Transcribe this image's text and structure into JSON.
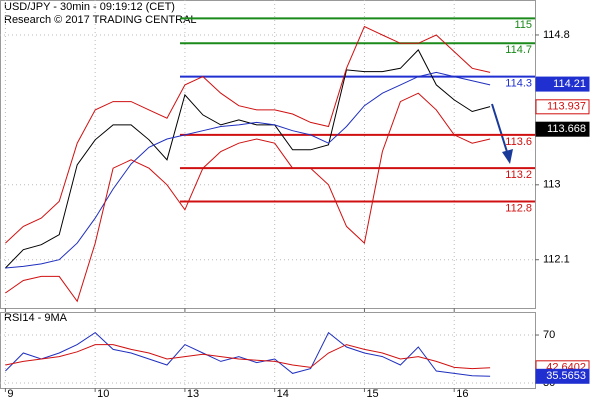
{
  "chart_data": [
    {
      "type": "line",
      "title": "USD/JPY - 30min - 09:19:12 (CET)",
      "subtitle": "Research © 2017 TRADING CENTRAL",
      "x": [
        0,
        0.2,
        0.4,
        0.6,
        0.8,
        1.0,
        1.2,
        1.4,
        1.6,
        1.8,
        2.0,
        2.2,
        2.4,
        2.6,
        2.8,
        3.0,
        3.2,
        3.4,
        3.6,
        3.8,
        4.0,
        4.2,
        4.4,
        4.6,
        4.8,
        5.0,
        5.2,
        5.4
      ],
      "xlim": [
        -0.06,
        5.9
      ],
      "xticks": [
        0,
        1,
        2,
        3,
        4,
        5
      ],
      "ylim": [
        111.52,
        115.22
      ],
      "yticks": [
        114.8,
        113.0,
        112.1
      ],
      "grid": true,
      "series": [
        {
          "color": "#000000",
          "values": [
            112.0,
            112.22,
            112.28,
            112.4,
            113.24,
            113.54,
            113.72,
            113.72,
            113.54,
            113.3,
            114.08,
            113.84,
            113.72,
            113.78,
            113.72,
            113.72,
            113.42,
            113.42,
            113.48,
            114.38,
            114.36,
            114.36,
            114.4,
            114.62,
            114.2,
            114.02,
            113.88,
            113.94
          ]
        },
        {
          "color": "#1f2fbf",
          "values": [
            112.0,
            112.02,
            112.05,
            112.1,
            112.3,
            112.6,
            112.95,
            113.25,
            113.45,
            113.55,
            113.6,
            113.65,
            113.7,
            113.72,
            113.75,
            113.72,
            113.65,
            113.6,
            113.5,
            113.7,
            113.95,
            114.1,
            114.2,
            114.3,
            114.35,
            114.3,
            114.25,
            114.2
          ]
        },
        {
          "color": "#d01010",
          "values": [
            112.3,
            112.5,
            112.6,
            112.8,
            113.5,
            113.9,
            114.0,
            114.0,
            113.9,
            113.8,
            114.2,
            114.3,
            114.1,
            113.95,
            113.9,
            113.9,
            113.85,
            113.75,
            113.7,
            114.4,
            114.9,
            114.8,
            114.7,
            114.7,
            114.8,
            114.6,
            114.4,
            114.35
          ]
        },
        {
          "color": "#d01010",
          "values": [
            111.7,
            111.85,
            111.9,
            111.9,
            111.6,
            112.3,
            113.2,
            113.3,
            113.2,
            113.0,
            112.7,
            113.2,
            113.4,
            113.5,
            113.55,
            113.5,
            113.2,
            113.2,
            113.0,
            112.5,
            112.3,
            113.4,
            114.0,
            114.1,
            113.9,
            113.6,
            113.5,
            113.55
          ]
        }
      ],
      "levels": [
        {
          "value": 115,
          "color": "#1a8a1a"
        },
        {
          "value": 114.7,
          "color": "#1a8a1a"
        },
        {
          "value": 114.3,
          "color": "#1f2fd0"
        },
        {
          "value": 113.6,
          "color": "#d01010"
        },
        {
          "value": 113.2,
          "color": "#d01010"
        },
        {
          "value": 112.8,
          "color": "#d01010"
        }
      ],
      "price_tags": [
        {
          "value": 114.21,
          "color": "#1f2fd0",
          "filled": true
        },
        {
          "value": 113.937,
          "color": "#d01010",
          "filled": false
        },
        {
          "value": 113.668,
          "color": "#000000",
          "filled": true
        }
      ]
    },
    {
      "type": "line",
      "title": "RSI14 - 9MA",
      "x": [
        0,
        0.2,
        0.4,
        0.6,
        0.8,
        1.0,
        1.2,
        1.4,
        1.6,
        1.8,
        2.0,
        2.2,
        2.4,
        2.6,
        2.8,
        3.0,
        3.2,
        3.4,
        3.6,
        3.8,
        4.0,
        4.2,
        4.4,
        4.6,
        4.8,
        5.0,
        5.2,
        5.4
      ],
      "xlim": [
        -0.06,
        5.9
      ],
      "xticks": [
        {
          "value": 0,
          "label": "9"
        },
        {
          "value": 1,
          "label": "10"
        },
        {
          "value": 2,
          "label": "13"
        },
        {
          "value": 3,
          "label": "14"
        },
        {
          "value": 4,
          "label": "15"
        },
        {
          "value": 5,
          "label": "16"
        }
      ],
      "ylim": [
        25.8,
        89.2
      ],
      "yticks": [
        70,
        30
      ],
      "grid": true,
      "series": [
        {
          "color": "#1f2fbf",
          "values": [
            40,
            55,
            50,
            55,
            62,
            72,
            58,
            55,
            50,
            45,
            62,
            55,
            48,
            52,
            47,
            50,
            38,
            42,
            72,
            60,
            55,
            52,
            45,
            60,
            40,
            38,
            36,
            35.57
          ]
        },
        {
          "color": "#d01010",
          "values": [
            45,
            48,
            50,
            52,
            56,
            62,
            62,
            58,
            55,
            50,
            52,
            54,
            52,
            50,
            49,
            48,
            45,
            43,
            55,
            62,
            58,
            55,
            50,
            52,
            48,
            43,
            42,
            42.64
          ]
        }
      ],
      "price_tags": [
        {
          "value": 42.6402,
          "color": "#d01010",
          "filled": false
        },
        {
          "value": 35.5653,
          "color": "#1f2fd0",
          "filled": true
        }
      ]
    }
  ]
}
